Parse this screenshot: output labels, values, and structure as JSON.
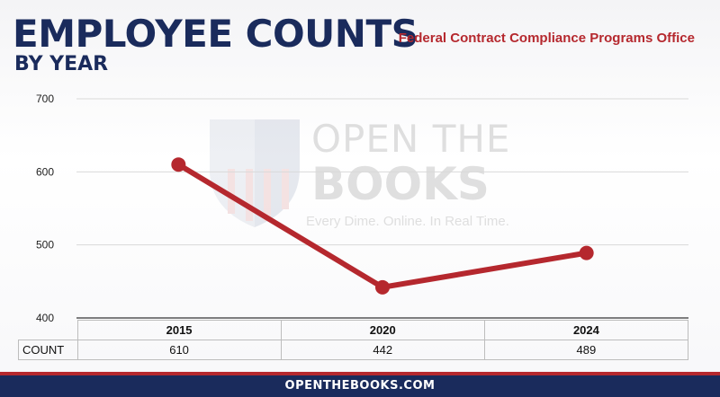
{
  "header": {
    "title": "EMPLOYEE COUNTS",
    "subtitle": "BY YEAR",
    "agency": "Federal Contract Compliance Programs Office"
  },
  "watermark": {
    "line1": "OPEN THE",
    "line2": "BOOKS",
    "tagline": "Every Dime. Online. In Real Time."
  },
  "chart_data": {
    "type": "line",
    "categories": [
      "2015",
      "2020",
      "2024"
    ],
    "series": [
      {
        "values": [
          610,
          442,
          489
        ]
      }
    ],
    "ylim": [
      400,
      700
    ],
    "yticks": [
      400,
      500,
      600,
      700
    ],
    "grid": true,
    "line_color": "#b5282e",
    "table": {
      "row_label": "COUNT",
      "values": [
        "610",
        "442",
        "489"
      ]
    }
  },
  "footer": {
    "text": "OPENTHEBOOKS.COM"
  },
  "colors": {
    "navy": "#1a2b5c",
    "red": "#b5282e"
  }
}
